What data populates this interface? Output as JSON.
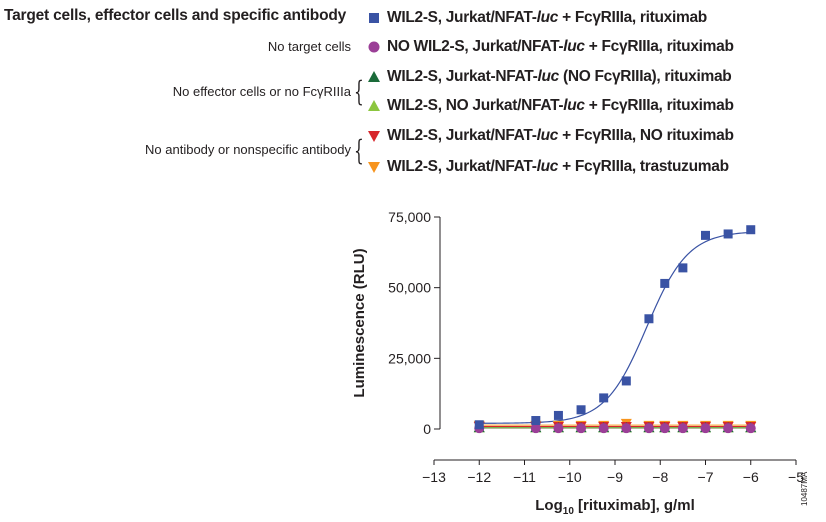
{
  "legend": {
    "title": "Target cells, effector cells and specific antibody",
    "groups": {
      "no_target": "No target cells",
      "no_effector": "No effector cells or no FcγRIIIa",
      "no_antibody": "No antibody or nonspecific antibody"
    },
    "entries": [
      {
        "pre": "WIL2-S, Jurkat/NFAT-",
        "italic": "luc",
        "post": " + FcγRIIIa, rituximab",
        "marker": "square",
        "color": "#3a53a4"
      },
      {
        "pre": "NO WIL2-S, Jurkat/NFAT-",
        "italic": "luc",
        "post": " + FcγRIIIa, rituximab",
        "marker": "circle",
        "color": "#9b3f97"
      },
      {
        "pre": "WIL2-S, Jurkat-NFAT-",
        "italic": "luc",
        "post": " (NO FcγRIIIa), rituximab",
        "marker": "triangle-up",
        "color": "#1b6b3a"
      },
      {
        "pre": "WIL2-S, NO Jurkat/NFAT-",
        "italic": "luc",
        "post": " + FcγRIIIa, rituximab",
        "marker": "triangle-up",
        "color": "#8cc63f"
      },
      {
        "pre": "WIL2-S, Jurkat/NFAT-",
        "italic": "luc",
        "post": " + FcγRIIIa, NO rituximab",
        "marker": "triangle-down",
        "color": "#d7262b"
      },
      {
        "pre": "WIL2-S, Jurkat/NFAT-",
        "italic": "luc",
        "post": " + FcγRIIIa, trastuzumab",
        "marker": "triangle-down",
        "color": "#f7941d"
      }
    ]
  },
  "chart_data": {
    "type": "scatter",
    "xlabel_main": "Log",
    "xlabel_sub": "10",
    "xlabel_rest": " [rituximab], g/ml",
    "ylabel": "Luminescence (RLU)",
    "xlim": [
      -13,
      -5
    ],
    "ylim": [
      0,
      75000
    ],
    "x_ticks": [
      -13,
      -12,
      -11,
      -10,
      -9,
      -8,
      -7,
      -6,
      -5
    ],
    "x_tick_labels": [
      "−13",
      "−12",
      "−11",
      "−10",
      "−9",
      "−8",
      "−7",
      "−6",
      "−5"
    ],
    "y_ticks": [
      0,
      25000,
      50000,
      75000
    ],
    "y_tick_labels": [
      "0",
      "25,000",
      "50,000",
      "75,000"
    ],
    "x": [
      -12,
      -10.75,
      -10.25,
      -9.75,
      -9.25,
      -8.75,
      -8.25,
      -7.9,
      -7.5,
      -7,
      -6.5,
      -6
    ],
    "series": [
      {
        "marker": "square",
        "color": "#3a53a4",
        "values": [
          1500,
          3000,
          4800,
          6800,
          11000,
          17000,
          39000,
          51500,
          57000,
          68500,
          69000,
          70500
        ],
        "fit": true
      },
      {
        "marker": "circle",
        "color": "#9b3f97",
        "values": [
          300,
          300,
          300,
          300,
          300,
          300,
          300,
          300,
          300,
          300,
          300,
          300
        ]
      },
      {
        "marker": "triangle-up",
        "color": "#1b6b3a",
        "values": [
          500,
          500,
          500,
          500,
          500,
          500,
          500,
          500,
          500,
          500,
          500,
          500
        ]
      },
      {
        "marker": "triangle-up",
        "color": "#8cc63f",
        "values": [
          400,
          400,
          400,
          400,
          400,
          400,
          400,
          400,
          400,
          400,
          400,
          400
        ]
      },
      {
        "marker": "triangle-down",
        "color": "#d7262b",
        "values": [
          900,
          900,
          900,
          900,
          900,
          900,
          900,
          900,
          900,
          900,
          900,
          900
        ]
      },
      {
        "marker": "triangle-down",
        "color": "#f7941d",
        "values": [
          1300,
          1300,
          1300,
          1300,
          1300,
          2000,
          1300,
          1300,
          1300,
          1300,
          1300,
          1300
        ]
      }
    ],
    "fit": {
      "bottom": 2000,
      "top": 70000,
      "logEC50": -8.3,
      "hill": 0.95
    }
  },
  "figure_code": "10487MA"
}
